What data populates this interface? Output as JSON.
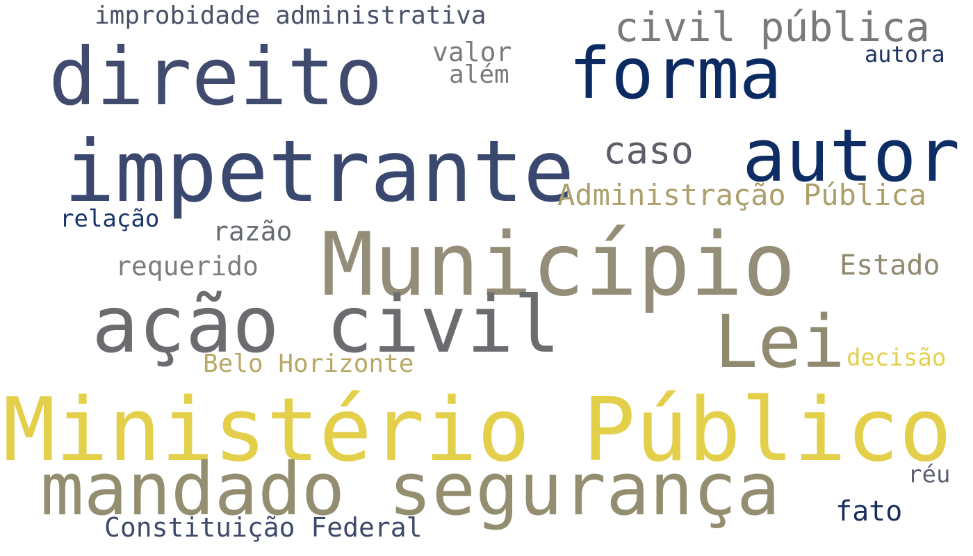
{
  "words": [
    {
      "text": "Ministério Público",
      "color": "#e3cf4a"
    },
    {
      "text": "impetrante",
      "color": "#3a4870"
    },
    {
      "text": "mandado segurança",
      "color": "#948e70"
    },
    {
      "text": "Município",
      "color": "#948e78"
    },
    {
      "text": "direito",
      "color": "#404b6e"
    },
    {
      "text": "ação civil",
      "color": "#6b6c70"
    },
    {
      "text": "forma",
      "color": "#0c2a62"
    },
    {
      "text": "autor",
      "color": "#0e2d65"
    },
    {
      "text": "Lei",
      "color": "#908a70"
    },
    {
      "text": "civil pública",
      "color": "#7a7a7a"
    },
    {
      "text": "caso",
      "color": "#5c5f68"
    },
    {
      "text": "Administração Pública",
      "color": "#ab9f6c"
    },
    {
      "text": "improbidade administrativa",
      "color": "#4a5068"
    },
    {
      "text": "valor",
      "color": "#7a7a78"
    },
    {
      "text": "além",
      "color": "#7a7a78"
    },
    {
      "text": "autora",
      "color": "#1e3462"
    },
    {
      "text": "razão",
      "color": "#666a72"
    },
    {
      "text": "requerido",
      "color": "#7c7c7c"
    },
    {
      "text": "Estado",
      "color": "#908a70"
    },
    {
      "text": "relação",
      "color": "#1a356a"
    },
    {
      "text": "Belo Horizonte",
      "color": "#b8a866"
    },
    {
      "text": "decisão",
      "color": "#e4cf50"
    },
    {
      "text": "réu",
      "color": "#5c6070"
    },
    {
      "text": "fato",
      "color": "#1a2e5e"
    },
    {
      "text": "Constituição Federal",
      "color": "#3f4a6a"
    }
  ]
}
